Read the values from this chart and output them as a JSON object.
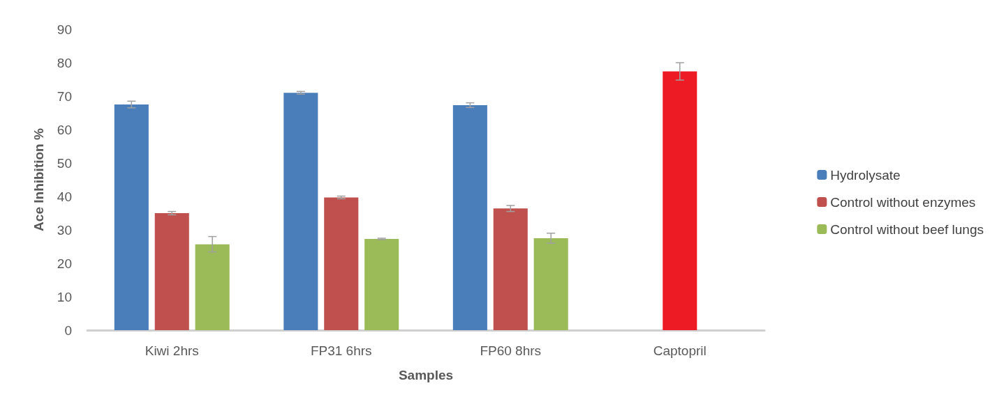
{
  "chart_data": {
    "type": "bar",
    "xlabel": "Samples",
    "ylabel": "Ace Inhibition %",
    "categories": [
      "Kiwi 2hrs",
      "FP31 6hrs",
      "FP60 8hrs",
      "Captopril"
    ],
    "series": [
      {
        "name": "Hydrolysate",
        "color": "#4a7ebb",
        "values": [
          67.5,
          71,
          67.3,
          null
        ],
        "errors": [
          1,
          0.4,
          0.7,
          null
        ]
      },
      {
        "name": "Control without enzymes",
        "color": "#c0504d",
        "colors": [
          "#c0504d",
          "#c0504d",
          "#c0504d",
          "#ed1c24"
        ],
        "values": [
          35,
          39.7,
          36.4,
          77.4
        ],
        "errors": [
          0.5,
          0.4,
          0.9,
          2.6
        ]
      },
      {
        "name": "Control without beef lungs",
        "color": "#9bbb59",
        "values": [
          25.7,
          27.3,
          27.5,
          null
        ],
        "errors": [
          2.3,
          0.2,
          1.5,
          null
        ]
      }
    ],
    "ylim": [
      0,
      90
    ],
    "yticks": [
      0,
      10,
      20,
      30,
      40,
      50,
      60,
      70,
      80,
      90
    ],
    "grid": false,
    "legend": "right"
  }
}
